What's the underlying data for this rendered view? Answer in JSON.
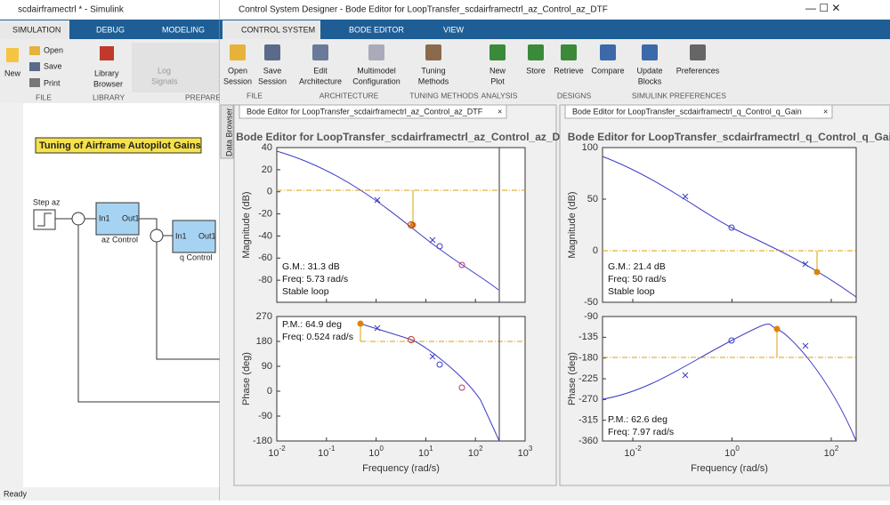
{
  "simulink": {
    "window_title": "scdairframectrl * - Simulink",
    "tabs": [
      "SIMULATION",
      "DEBUG",
      "MODELING"
    ],
    "toolbar": {
      "new": "New",
      "open": "Open",
      "save": "Save",
      "print": "Print",
      "library_browser": [
        "Library",
        "Browser"
      ],
      "log_signals": [
        "Log",
        "Signals"
      ],
      "sections": [
        "FILE",
        "LIBRARY",
        "PREPARE"
      ]
    },
    "diagram": {
      "banner": "Tuning of Airframe Autopilot Gains",
      "step": "Step az",
      "az_block": {
        "name": "az Control",
        "in": "In1",
        "out": "Out1"
      },
      "q_block": {
        "name": "q Control",
        "in": "In1",
        "out": "Out1"
      }
    },
    "status": "Ready"
  },
  "designer": {
    "window_title": "Control System Designer - Bode Editor for LoopTransfer_scdairframectrl_az_Control_az_DTF",
    "tabs": [
      "CONTROL SYSTEM",
      "BODE EDITOR",
      "VIEW"
    ],
    "buttons": [
      [
        "Open",
        "Session"
      ],
      [
        "Save",
        "Session"
      ],
      [
        "Edit",
        "Architecture"
      ],
      [
        "Multimodel",
        "Configuration"
      ],
      [
        "Tuning",
        "Methods"
      ],
      [
        "New",
        "Plot"
      ],
      [
        "Store"
      ],
      [
        "Retrieve"
      ],
      [
        "Compare"
      ],
      [
        "Update",
        "Blocks"
      ],
      [
        "Preferences"
      ]
    ],
    "sections": [
      "FILE",
      "ARCHITECTURE",
      "TUNING METHODS",
      "ANALYSIS",
      "DESIGNS",
      "SIMULINK",
      "PREFERENCES"
    ],
    "data_browser": "Data Browser",
    "panels": [
      {
        "tab": "Bode Editor for LoopTransfer_scdairframectrl_az_Control_az_DTF",
        "title": "Bode Editor for LoopTransfer_scdairframectrl_az_Control_az_DTF",
        "magnitude_label": "Magnitude (dB)",
        "phase_label": "Phase (deg)",
        "x_label": "Frequency (rad/s)",
        "magnitude_ticks": [
          "40",
          "20",
          "0",
          "-20",
          "-40",
          "-60",
          "-80"
        ],
        "phase_ticks": [
          "270",
          "180",
          "90",
          "0",
          "-90",
          "-180"
        ],
        "x_ticks": [
          {
            "base": "10",
            "exp": "-2"
          },
          {
            "base": "10",
            "exp": "-1"
          },
          {
            "base": "10",
            "exp": "0"
          },
          {
            "base": "10",
            "exp": "1"
          },
          {
            "base": "10",
            "exp": "2"
          },
          {
            "base": "10",
            "exp": "3"
          }
        ],
        "gain_margin": [
          "G.M.: 31.3 dB",
          "Freq: 5.73 rad/s",
          "Stable loop"
        ],
        "phase_margin": [
          "P.M.: 64.9 deg",
          "Freq: 0.524 rad/s"
        ]
      },
      {
        "tab": "Bode Editor for LoopTransfer_scdairframectrl_q_Control_q_Gain",
        "title": "Bode Editor for LoopTransfer_scdairframectrl_q_Control_q_Gain",
        "magnitude_label": "Magnitude (dB)",
        "phase_label": "Phase (deg)",
        "x_label": "Frequency (rad/s)",
        "magnitude_ticks": [
          "100",
          "50",
          "0",
          "-50"
        ],
        "phase_ticks": [
          "-90",
          "-135",
          "-180",
          "-225",
          "-270",
          "-315",
          "-360"
        ],
        "x_ticks": [
          {
            "base": "10",
            "exp": "-2"
          },
          {
            "base": "10",
            "exp": "0"
          },
          {
            "base": "10",
            "exp": "2"
          }
        ],
        "gain_margin": [
          "G.M.: 21.4 dB",
          "Freq: 50 rad/s",
          "Stable loop"
        ],
        "phase_margin": [
          "P.M.: 62.6 deg",
          "Freq: 7.97 rad/s"
        ]
      }
    ]
  }
}
